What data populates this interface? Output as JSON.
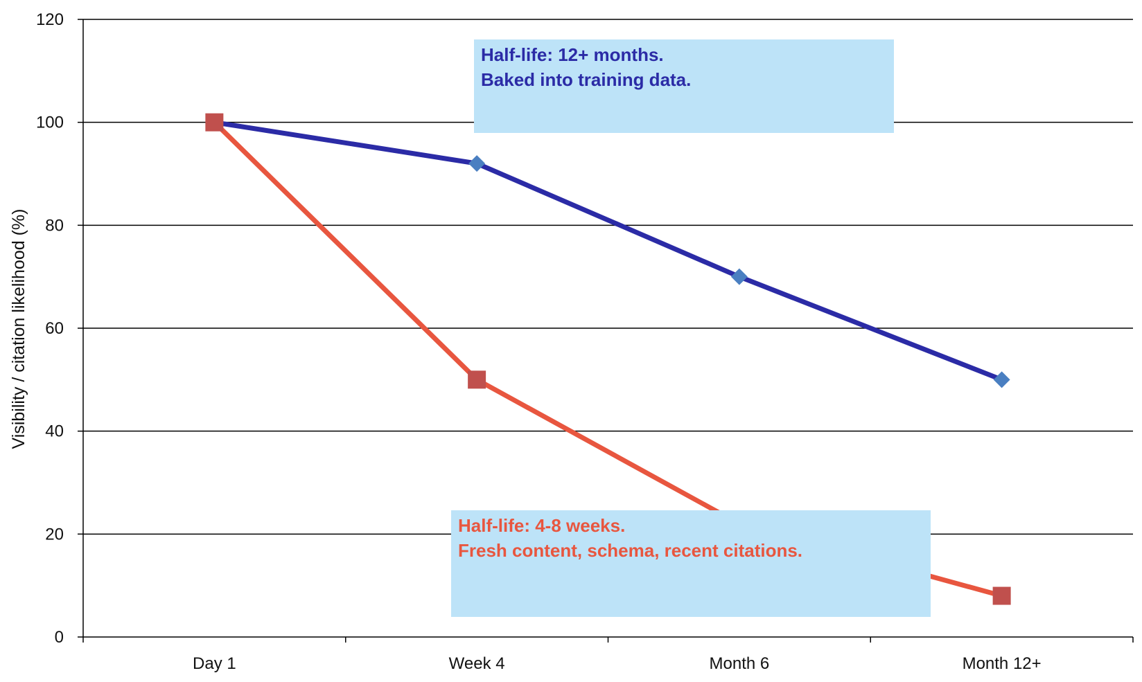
{
  "chart_data": {
    "type": "line",
    "title": "",
    "xlabel": "",
    "ylabel": "Visibility / citation likelihood (%)",
    "categories": [
      "Day 1",
      "Week 4",
      "Month 6",
      "Month 12+"
    ],
    "ylim": [
      0,
      120
    ],
    "yticks": [
      "0",
      "20",
      "40",
      "60",
      "80",
      "100",
      "120"
    ],
    "grid": true,
    "legend": "none",
    "series": [
      {
        "color": "#2b2ba6",
        "marker_color": "#4a7fc1",
        "marker": "diamond",
        "values": [
          100,
          92,
          70,
          50
        ]
      },
      {
        "color": "#e8563f",
        "marker_color": "#c0504d",
        "marker": "square",
        "values": [
          100,
          50,
          22,
          8
        ]
      }
    ],
    "annotations": [
      {
        "lines": [
          "Half-life: 12+ months.",
          "Baked into training data."
        ],
        "color": "#2b2ba6"
      },
      {
        "lines": [
          "Half-life: 4-8 weeks.",
          "Fresh content, schema, recent citations."
        ],
        "color": "#e8563f"
      }
    ]
  }
}
